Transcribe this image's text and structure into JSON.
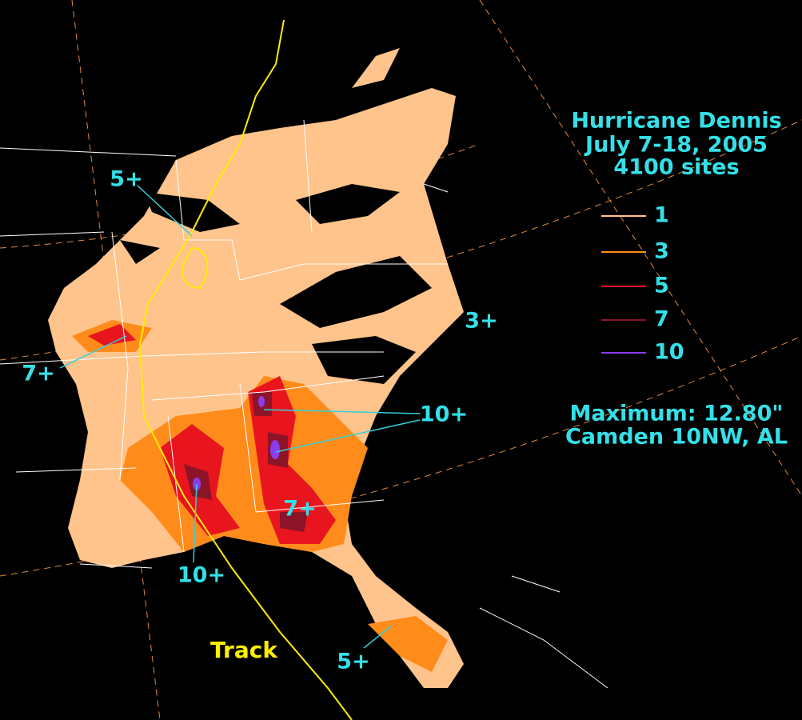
{
  "title": [
    "Hurricane Dennis",
    "July 7-18, 2005",
    "4100 sites"
  ],
  "legend": [
    {
      "label": "1",
      "color": "#ffc48c"
    },
    {
      "label": "3",
      "color": "#ff8c1a"
    },
    {
      "label": "5",
      "color": "#e8141e"
    },
    {
      "label": "7",
      "color": "#8c1428"
    },
    {
      "label": "10",
      "color": "#8a3cf0"
    }
  ],
  "maximum": [
    "Maximum: 12.80\"",
    "Camden 10NW, AL"
  ],
  "annotations": [
    "5+",
    "3+",
    "7+",
    "10+",
    "7+",
    "10+",
    "5+"
  ],
  "track_label": "Track"
}
